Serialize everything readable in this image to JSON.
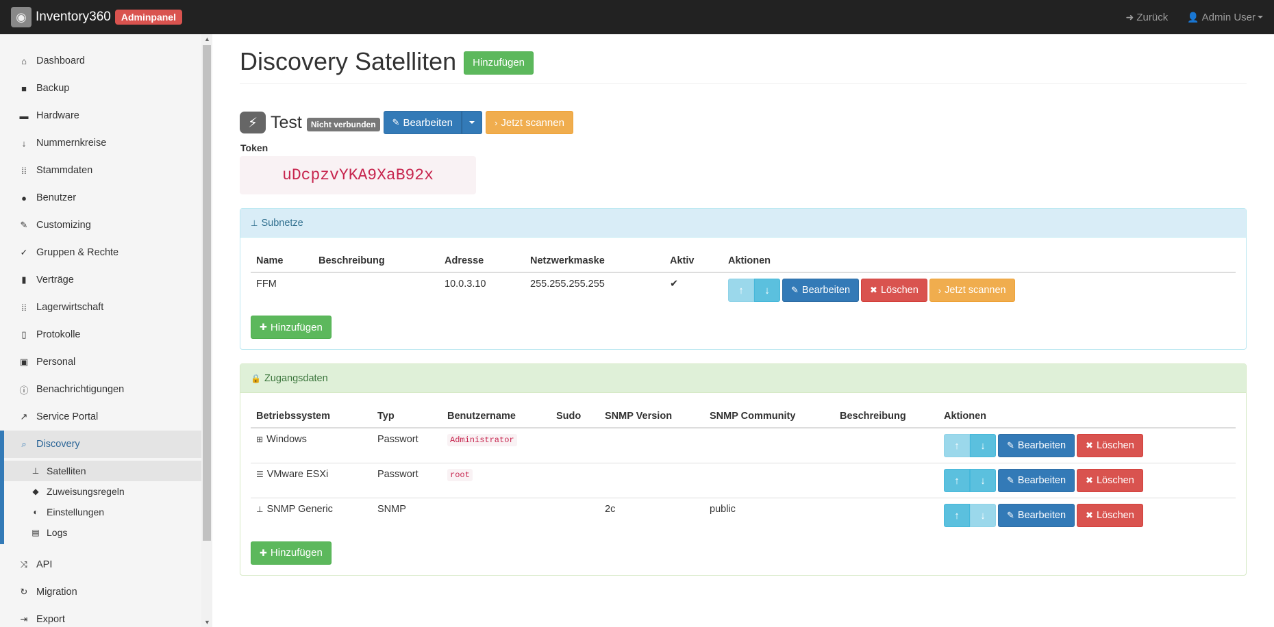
{
  "navbar": {
    "brand": "Inventory360",
    "badge": "Adminpanel",
    "back": "Zurück",
    "user": "Admin User"
  },
  "sidebar": {
    "items": [
      {
        "label": "Dashboard",
        "icon": "home-icon"
      },
      {
        "label": "Backup",
        "icon": "lock-icon"
      },
      {
        "label": "Hardware",
        "icon": "laptop-icon"
      },
      {
        "label": "Nummernkreise",
        "icon": "sort-numeric-icon"
      },
      {
        "label": "Stammdaten",
        "icon": "grid-icon"
      },
      {
        "label": "Benutzer",
        "icon": "user-icon"
      },
      {
        "label": "Customizing",
        "icon": "edit-icon"
      },
      {
        "label": "Gruppen & Rechte",
        "icon": "check-circle-icon"
      },
      {
        "label": "Verträge",
        "icon": "book-icon"
      },
      {
        "label": "Lagerwirtschaft",
        "icon": "grid-icon"
      },
      {
        "label": "Protokolle",
        "icon": "file-icon"
      },
      {
        "label": "Personal",
        "icon": "briefcase-icon"
      },
      {
        "label": "Benachrichtigungen",
        "icon": "info-circle-icon"
      },
      {
        "label": "Service Portal",
        "icon": "external-link-icon"
      },
      {
        "label": "Discovery",
        "icon": "search-icon"
      }
    ],
    "sub_items": [
      {
        "label": "Satelliten",
        "icon": "sitemap-icon"
      },
      {
        "label": "Zuweisungsregeln",
        "icon": "tags-icon"
      },
      {
        "label": "Einstellungen",
        "icon": "toggle-icon"
      },
      {
        "label": "Logs",
        "icon": "file-text-icon"
      }
    ],
    "after_items": [
      {
        "label": "API",
        "icon": "random-icon"
      },
      {
        "label": "Migration",
        "icon": "refresh-icon"
      },
      {
        "label": "Export",
        "icon": "export-icon"
      }
    ]
  },
  "page": {
    "title": "Discovery Satelliten",
    "add": "Hinzufügen"
  },
  "satellite": {
    "name": "Test",
    "status": "Nicht verbunden",
    "edit": "Bearbeiten",
    "scan": "Jetzt scannen",
    "token_label": "Token",
    "token": "uDcpzvYKA9XaB92x"
  },
  "subnets": {
    "heading": "Subnetze",
    "columns": [
      "Name",
      "Beschreibung",
      "Adresse",
      "Netzwerkmaske",
      "Aktiv",
      "Aktionen"
    ],
    "rows": [
      {
        "name": "FFM",
        "description": "",
        "address": "10.0.3.10",
        "netmask": "255.255.255.255",
        "active": "✔"
      }
    ],
    "edit": "Bearbeiten",
    "delete": "Löschen",
    "scan": "Jetzt scannen",
    "add": "Hinzufügen"
  },
  "credentials": {
    "heading": "Zugangsdaten",
    "columns": [
      "Betriebssystem",
      "Typ",
      "Benutzername",
      "Sudo",
      "SNMP Version",
      "SNMP Community",
      "Beschreibung",
      "Aktionen"
    ],
    "rows": [
      {
        "os": "Windows",
        "os_icon": "windows-icon",
        "type": "Passwort",
        "username": "Administrator",
        "sudo": "",
        "snmp_version": "",
        "snmp_community": "",
        "description": ""
      },
      {
        "os": "VMware ESXi",
        "os_icon": "server-icon",
        "type": "Passwort",
        "username": "root",
        "sudo": "",
        "snmp_version": "",
        "snmp_community": "",
        "description": ""
      },
      {
        "os": "SNMP Generic",
        "os_icon": "sitemap-icon",
        "type": "SNMP",
        "username": "",
        "sudo": "",
        "snmp_version": "2c",
        "snmp_community": "public",
        "description": ""
      }
    ],
    "edit": "Bearbeiten",
    "delete": "Löschen",
    "add": "Hinzufügen"
  }
}
